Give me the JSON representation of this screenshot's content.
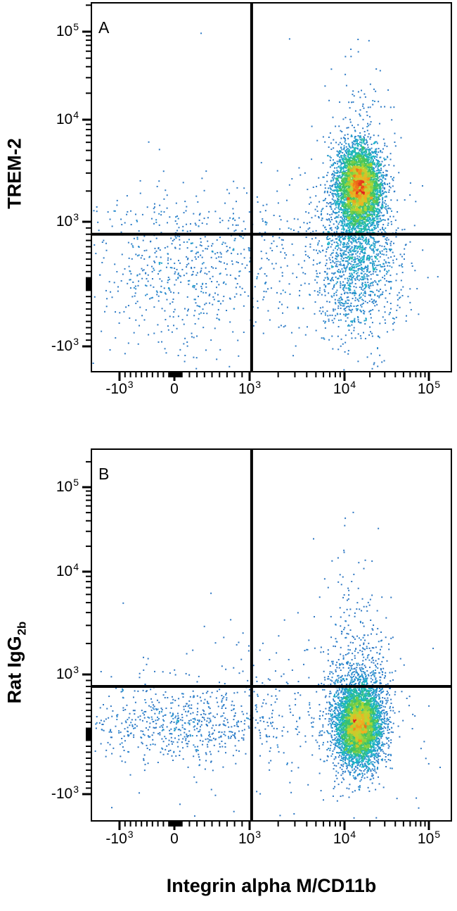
{
  "figure": {
    "background": "#ffffff",
    "x_axis_title": "Integrin alpha M/CD11b",
    "panels": [
      {
        "label": "A",
        "y_axis_title": "TREM-2",
        "y_axis_title_sub": ""
      },
      {
        "label": "B",
        "y_axis_title": "Rat IgG",
        "y_axis_title_sub": "2b"
      }
    ]
  },
  "style": {
    "axis_color": "#000000",
    "gate_color": "#000000",
    "colormap_stops": [
      [
        0.0,
        "#2a55a8"
      ],
      [
        0.22,
        "#2f86cf"
      ],
      [
        0.4,
        "#19b7c9"
      ],
      [
        0.55,
        "#3fc45c"
      ],
      [
        0.7,
        "#b8d832"
      ],
      [
        0.82,
        "#f0b022"
      ],
      [
        0.91,
        "#ee7519"
      ],
      [
        1.0,
        "#e31e1e"
      ]
    ]
  },
  "chart_data": [
    {
      "type": "scatter",
      "subtype": "flow-cytometry-density",
      "panel": "A",
      "xlabel": "Integrin alpha M/CD11b",
      "ylabel": "TREM-2",
      "scale": "biexponential",
      "xlim": [
        -2000,
        200000
      ],
      "ylim": [
        -2000,
        200000
      ],
      "grid": false,
      "x_ticks": [
        {
          "v": -1000,
          "base": "-10",
          "exp": "3"
        },
        {
          "v": 0,
          "base": "0",
          "exp": ""
        },
        {
          "v": 1000,
          "base": "10",
          "exp": "3"
        },
        {
          "v": 10000,
          "base": "10",
          "exp": "4"
        },
        {
          "v": 100000,
          "base": "10",
          "exp": "5"
        }
      ],
      "y_ticks": [
        {
          "v": 100000,
          "base": "10",
          "exp": "5"
        },
        {
          "v": 10000,
          "base": "10",
          "exp": "4"
        },
        {
          "v": 1000,
          "base": "10",
          "exp": "3"
        },
        {
          "v": -1000,
          "base": "-10",
          "exp": "3"
        }
      ],
      "x_anchors": {
        "values": [
          -1000,
          0,
          1000,
          10000,
          100000
        ],
        "fracs": [
          0.0781,
          0.2305,
          0.4395,
          0.7031,
          0.9375
        ]
      },
      "y_anchors": {
        "values": [
          -1000,
          0,
          1000,
          10000,
          100000
        ],
        "fracs": [
          0.9313,
          0.7624,
          0.5935,
          0.3168,
          0.0782
        ]
      },
      "quadrant_gate": {
        "x": 1050,
        "y": 800
      },
      "populations": [
        {
          "name": "CD11b+ TREM-2+ dense core",
          "x": 15000,
          "y": 2200,
          "sx": 0.03,
          "sy": 0.055,
          "n": 4500
        },
        {
          "name": "CD11b+ vertical spread",
          "x": 14000,
          "y": 550,
          "sx": 0.055,
          "sy": 0.115,
          "n": 1600
        },
        {
          "name": "CD11b- diffuse scatter",
          "x": 150,
          "y": 320,
          "sx": 0.155,
          "sy": 0.1,
          "n": 560
        },
        {
          "name": "background scatter",
          "x": 1500,
          "y": 250,
          "sx": 0.27,
          "sy": 0.16,
          "n": 320
        },
        {
          "name": "upper sparse tail",
          "x": 15000,
          "y": 9000,
          "sx": 0.05,
          "sy": 0.09,
          "n": 110
        }
      ]
    },
    {
      "type": "scatter",
      "subtype": "flow-cytometry-density",
      "panel": "B",
      "xlabel": "Integrin alpha M/CD11b",
      "ylabel": "Rat IgG2b",
      "scale": "biexponential",
      "xlim": [
        -2000,
        200000
      ],
      "ylim": [
        -2000,
        200000
      ],
      "grid": false,
      "x_ticks": [
        {
          "v": -1000,
          "base": "-10",
          "exp": "3"
        },
        {
          "v": 0,
          "base": "0",
          "exp": ""
        },
        {
          "v": 1000,
          "base": "10",
          "exp": "3"
        },
        {
          "v": 10000,
          "base": "10",
          "exp": "4"
        },
        {
          "v": 100000,
          "base": "10",
          "exp": "5"
        }
      ],
      "y_ticks": [
        {
          "v": 100000,
          "base": "10",
          "exp": "5"
        },
        {
          "v": 10000,
          "base": "10",
          "exp": "4"
        },
        {
          "v": 1000,
          "base": "10",
          "exp": "3"
        },
        {
          "v": -1000,
          "base": "-10",
          "exp": "3"
        }
      ],
      "x_anchors": {
        "values": [
          -1000,
          0,
          1000,
          10000,
          100000
        ],
        "fracs": [
          0.0781,
          0.2305,
          0.4395,
          0.7031,
          0.9375
        ]
      },
      "y_anchors": {
        "values": [
          -1000,
          0,
          1000,
          10000,
          100000
        ],
        "fracs": [
          0.928,
          0.767,
          0.6061,
          0.3295,
          0.1023
        ]
      },
      "quadrant_gate": {
        "x": 1050,
        "y": 800
      },
      "populations": [
        {
          "name": "CD11b+ isotype-negative dense core",
          "x": 15000,
          "y": 150,
          "sx": 0.03,
          "sy": 0.052,
          "n": 4500
        },
        {
          "name": "CD11b+ vertical spread",
          "x": 14000,
          "y": 450,
          "sx": 0.05,
          "sy": 0.1,
          "n": 900
        },
        {
          "name": "CD11b- diffuse scatter",
          "x": 120,
          "y": 180,
          "sx": 0.15,
          "sy": 0.048,
          "n": 620
        },
        {
          "name": "background scatter",
          "x": 1500,
          "y": 200,
          "sx": 0.27,
          "sy": 0.13,
          "n": 280
        },
        {
          "name": "upper sparse tail",
          "x": 16000,
          "y": 3500,
          "sx": 0.045,
          "sy": 0.13,
          "n": 85
        }
      ]
    }
  ]
}
